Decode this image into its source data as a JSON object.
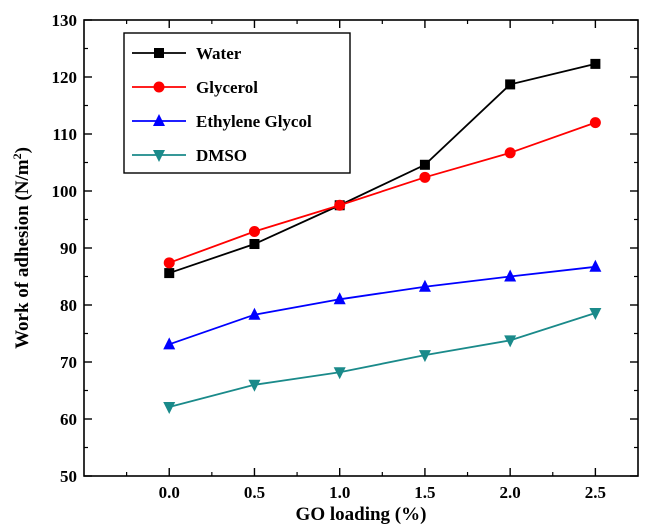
{
  "chart_data": {
    "type": "line",
    "xlabel": "GO loading (%)",
    "ylabel": "Work of adhesion (N/m²)",
    "ylabel_main": "Work of adhesion (N/m",
    "ylabel_sup": "2",
    "ylabel_end": ")",
    "x": [
      0.0,
      0.5,
      1.0,
      1.5,
      2.0,
      2.5
    ],
    "x_tick_labels": [
      "0.0",
      "0.5",
      "1.0",
      "1.5",
      "2.0",
      "2.5"
    ],
    "xlim": [
      -0.5,
      2.75
    ],
    "ylim": [
      50,
      130
    ],
    "y_ticks": [
      50,
      60,
      70,
      80,
      90,
      100,
      110,
      120,
      130
    ],
    "y_tick_labels": [
      "50",
      "60",
      "70",
      "80",
      "90",
      "100",
      "110",
      "120",
      "130"
    ],
    "grid": false,
    "legend_position": "top-left",
    "series": [
      {
        "name": "Water",
        "color": "#000000",
        "marker": "square",
        "values": [
          85.6,
          90.7,
          97.5,
          104.6,
          118.7,
          122.3
        ]
      },
      {
        "name": "Glycerol",
        "color": "#ff0000",
        "marker": "circle",
        "values": [
          87.4,
          92.9,
          97.5,
          102.4,
          106.7,
          112.0
        ]
      },
      {
        "name": "Ethylene Glycol",
        "color": "#0000ff",
        "marker": "triangle-up",
        "values": [
          73.1,
          78.3,
          81.0,
          83.2,
          85.0,
          86.7
        ]
      },
      {
        "name": "DMSO",
        "color": "#1a8a8a",
        "marker": "triangle-down",
        "values": [
          62.1,
          66.0,
          68.2,
          71.2,
          73.8,
          78.6
        ]
      }
    ]
  }
}
